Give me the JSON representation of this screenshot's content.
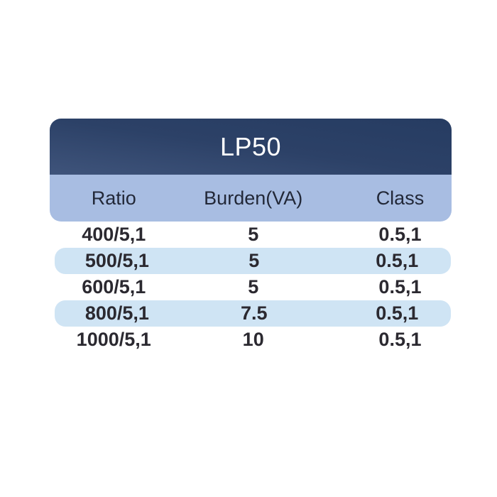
{
  "table": {
    "title": "LP50",
    "columns": [
      "Ratio",
      "Burden(VA)",
      "Class"
    ],
    "rows": [
      {
        "ratio": "400/5,1",
        "burden": "5",
        "class": "0.5,1",
        "highlighted": false
      },
      {
        "ratio": "500/5,1",
        "burden": "5",
        "class": "0.5,1",
        "highlighted": true
      },
      {
        "ratio": "600/5,1",
        "burden": "5",
        "class": "0.5,1",
        "highlighted": false
      },
      {
        "ratio": "800/5,1",
        "burden": "7.5",
        "class": "0.5,1",
        "highlighted": true
      },
      {
        "ratio": "1000/5,1",
        "burden": "10",
        "class": "0.5,1",
        "highlighted": false
      }
    ],
    "colors": {
      "navy_dark": "#263c62",
      "navy": "#2c4167",
      "navy_light": "#3f547b",
      "subheader_blue": "#a8bde2",
      "row_highlight": "#cfe4f4",
      "title_text": "#ffffff",
      "header_text": "#222838",
      "body_text": "#2b2930",
      "page_bg": "#ffffff"
    }
  }
}
